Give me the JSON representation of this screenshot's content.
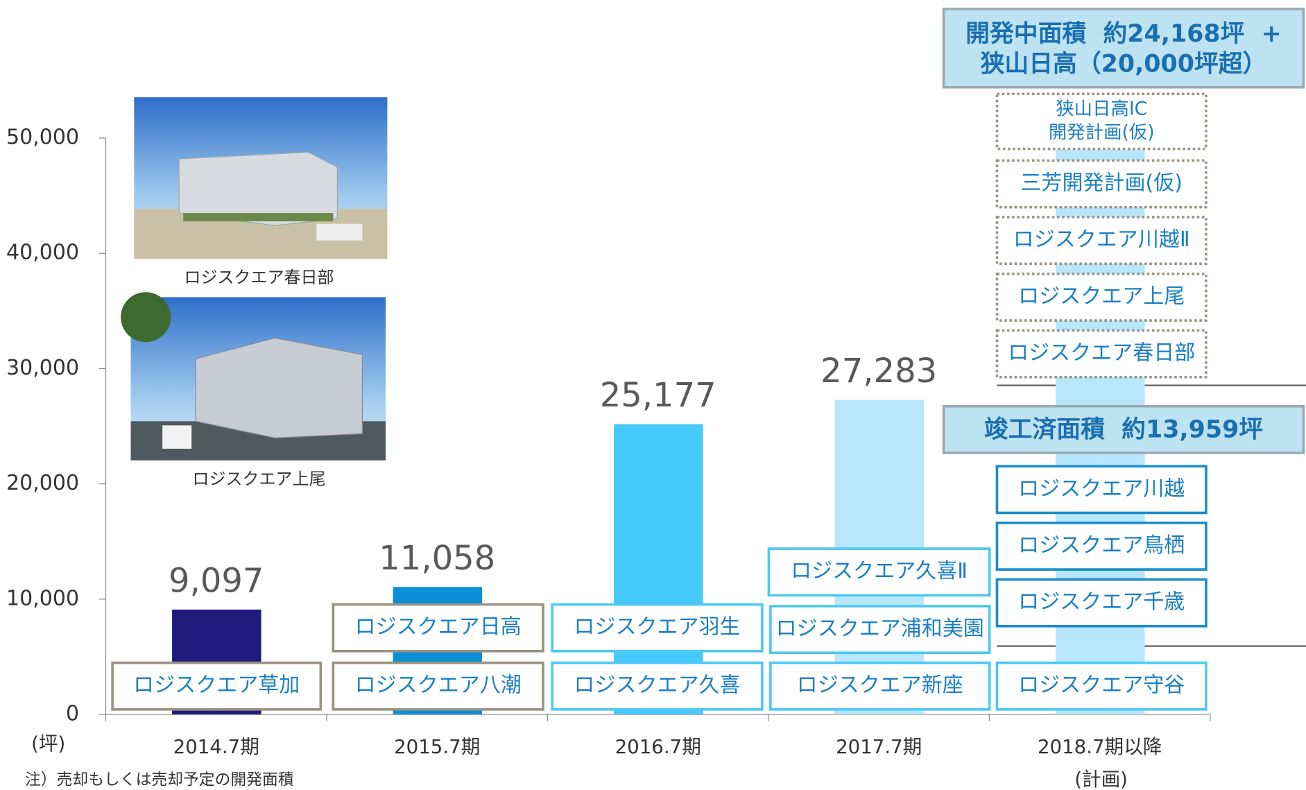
{
  "chart_data": {
    "type": "bar",
    "categories": [
      "2014.7期",
      "2015.7期",
      "2016.7期",
      "2017.7期",
      "2018.7期以降"
    ],
    "category_note": "(計画)",
    "values": [
      9097,
      11058,
      25177,
      27283,
      49000
    ],
    "value_labels": [
      "9,097",
      "11,058",
      "25,177",
      "27,283",
      null
    ],
    "colors": [
      "#211a7e",
      "#0b8fd8",
      "#45c8fa",
      "#b8e6fb",
      "#b8e6fb"
    ],
    "ylim": [
      0,
      50000
    ],
    "yticks": [
      0,
      {
        "value": 10000,
        "label": "10,000"
      },
      {
        "value": 20000,
        "label": "20,000"
      },
      {
        "value": 30000,
        "label": "30,000"
      },
      {
        "value": 40000,
        "label": "40,000"
      },
      {
        "value": 50000,
        "label": "50,000"
      }
    ],
    "y_unit": "(坪)",
    "note": "注）売却もしくは売却予定の開発面積",
    "boxes": [
      [
        "ロジスクエア草加"
      ],
      [
        "ロジスクエア八潮",
        "ロジスクエア日高"
      ],
      [
        "ロジスクエア久喜",
        "ロジスクエア羽生"
      ],
      [
        "ロジスクエア新座",
        "ロジスクエア浦和美園",
        "ロジスクエア久喜Ⅱ"
      ],
      [
        "ロジスクエア守谷",
        "ロジスクエア千歳",
        "ロジスクエア鳥栖",
        "ロジスクエア川越"
      ]
    ],
    "planned_boxes": [
      [
        "ロジスクエア春日部"
      ],
      [
        "ロジスクエア上尾"
      ],
      [
        "ロジスクエア川越Ⅱ"
      ],
      [
        "三芳開発計画(仮)"
      ],
      [
        "狭山日高IC",
        "開発計画(仮)"
      ]
    ],
    "completed_total": "竣工済面積  約13,959坪",
    "development_total": [
      "開発中面積  約24,168坪  +",
      "狭山日高（20,000坪超）"
    ],
    "photos": [
      "ロジスクエア春日部",
      "ロジスクエア上尾"
    ]
  }
}
